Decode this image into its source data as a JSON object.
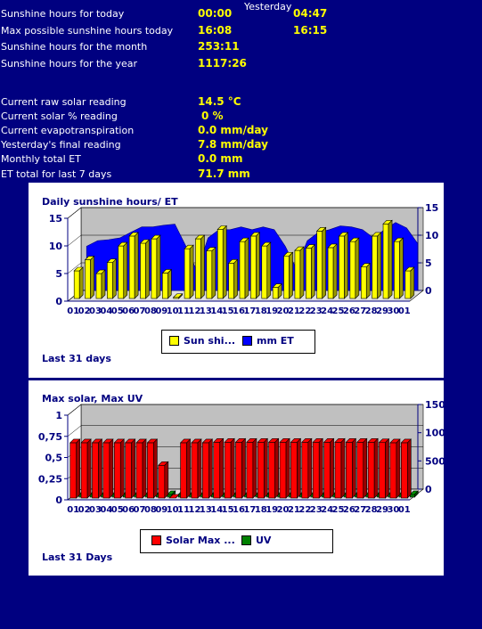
{
  "stats": {
    "yesterday_label": "Yesterday",
    "rows": [
      {
        "label": "Sunshine hours for today",
        "today": "00:00",
        "yesterday": "04:47"
      },
      {
        "label": "Max possible sunshine hours today",
        "today": "16:08",
        "yesterday": "16:15"
      },
      {
        "label": "Sunshine hours for the month",
        "today": "253:11",
        "yesterday": ""
      },
      {
        "label": "Sunshine hours for the year",
        "today": "1117:26",
        "yesterday": ""
      }
    ],
    "readings": [
      {
        "label": "Current raw solar reading",
        "value": "14.5 °C"
      },
      {
        "label": "Current solar % reading",
        "value": "0 %"
      },
      {
        "label": "Current evapotranspiration",
        "value": "0.0 mm/day"
      },
      {
        "label": "Yesterday's final reading",
        "value": "7.8 mm/day"
      },
      {
        "label": "Monthly total ET",
        "value": "0.0 mm"
      },
      {
        "label": "ET total for last 7 days",
        "value": "71.7 mm"
      }
    ]
  },
  "colors": {
    "background": "#000080",
    "value_text": "#ffff00",
    "sunshine_bar": "#ffff00",
    "et_area": "#0000ff",
    "solar_bar": "#ff0000",
    "uv_bar": "#008000",
    "plot_back": "#c0c0c0"
  },
  "chart_data": [
    {
      "type": "bar",
      "title": "Daily sunshine hours/ ET",
      "footer": "Last 31 days",
      "categories": [
        "01",
        "02",
        "03",
        "04",
        "05",
        "06",
        "07",
        "08",
        "09",
        "10",
        "11",
        "12",
        "13",
        "14",
        "15",
        "16",
        "17",
        "18",
        "19",
        "20",
        "21",
        "22",
        "23",
        "24",
        "25",
        "26",
        "27",
        "28",
        "29",
        "30",
        "01"
      ],
      "yaxis_left": {
        "ticks": [
          "0",
          "5",
          "10",
          "15"
        ],
        "range": [
          0,
          15
        ]
      },
      "yaxis_right": {
        "ticks": [
          "0",
          "5",
          "10",
          "15"
        ],
        "range": [
          0,
          15
        ]
      },
      "series": [
        {
          "name": "Sun shi...",
          "kind": "bar",
          "axis": "left",
          "values": [
            5,
            7,
            4.5,
            6.5,
            9.5,
            11.3,
            10,
            10.8,
            4.6,
            0.2,
            9,
            10.8,
            8.6,
            12.5,
            6.4,
            10.3,
            11.3,
            9.5,
            2,
            7.7,
            8.7,
            9.1,
            12.2,
            9.2,
            11.3,
            10.3,
            5.7,
            11.3,
            13.5,
            10.3,
            5
          ]
        },
        {
          "name": "mm ET",
          "kind": "area",
          "axis": "right",
          "values": [
            8,
            9,
            9.2,
            9.5,
            10.5,
            11.5,
            11.5,
            11.8,
            12,
            8,
            3.5,
            9.5,
            11,
            11,
            11.5,
            11,
            11.5,
            11,
            8,
            4,
            9,
            10.5,
            11,
            11.7,
            11.5,
            11,
            9.5,
            11,
            12.3,
            11.3,
            8.5
          ]
        }
      ],
      "grid": true,
      "legend": "bottom"
    },
    {
      "type": "bar",
      "title": "Max solar, Max UV",
      "footer": "Last 31 Days",
      "categories": [
        "01",
        "02",
        "03",
        "04",
        "05",
        "06",
        "07",
        "08",
        "09",
        "10",
        "11",
        "12",
        "13",
        "14",
        "15",
        "16",
        "17",
        "18",
        "19",
        "20",
        "21",
        "22",
        "23",
        "24",
        "25",
        "26",
        "27",
        "28",
        "29",
        "30",
        "01"
      ],
      "yaxis_left": {
        "ticks": [
          "0",
          "0,25",
          "0,5",
          "0,75",
          "1"
        ],
        "range": [
          0,
          1
        ]
      },
      "yaxis_right": {
        "ticks": [
          "0",
          "500",
          "1000",
          "1500"
        ],
        "range": [
          0,
          1500
        ]
      },
      "series": [
        {
          "name": "Solar Max ...",
          "kind": "bar",
          "axis": "right",
          "values": [
            980,
            980,
            980,
            980,
            980,
            980,
            980,
            980,
            580,
            0,
            980,
            980,
            980,
            990,
            990,
            990,
            990,
            990,
            990,
            990,
            990,
            990,
            990,
            990,
            990,
            990,
            990,
            990,
            985,
            980,
            980
          ]
        },
        {
          "name": "UV",
          "kind": "bar",
          "axis": "left",
          "values": [
            0,
            0,
            0,
            0,
            0,
            0,
            0,
            0,
            0,
            0,
            0,
            0,
            0,
            0,
            0,
            0,
            0,
            0,
            0,
            0,
            0,
            0,
            0,
            0,
            0,
            0,
            0,
            0,
            0,
            0,
            0
          ]
        }
      ],
      "grid": true,
      "legend": "bottom"
    }
  ]
}
